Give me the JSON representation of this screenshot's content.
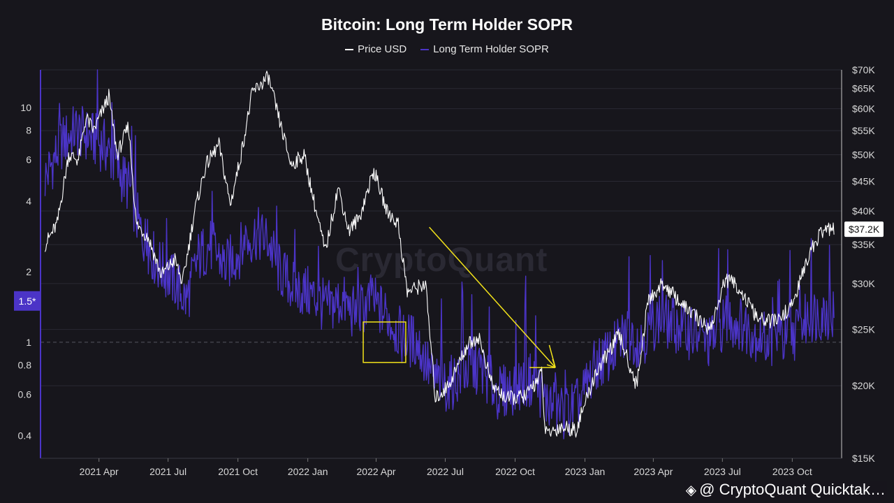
{
  "chart_data": {
    "type": "line",
    "title": "Bitcoin: Long Term Holder SOPR",
    "series": [
      {
        "name": "Price USD",
        "color": "#ffffff",
        "axis": "right",
        "points": [
          [
            "2021-01-20",
            35000
          ],
          [
            "2021-02-05",
            38000
          ],
          [
            "2021-02-20",
            50000
          ],
          [
            "2021-03-05",
            49000
          ],
          [
            "2021-03-15",
            58000
          ],
          [
            "2021-03-25",
            55000
          ],
          [
            "2021-04-14",
            63000
          ],
          [
            "2021-04-25",
            50000
          ],
          [
            "2021-05-10",
            56000
          ],
          [
            "2021-05-20",
            38000
          ],
          [
            "2021-06-05",
            36000
          ],
          [
            "2021-06-22",
            31000
          ],
          [
            "2021-07-10",
            33000
          ],
          [
            "2021-07-20",
            30000
          ],
          [
            "2021-08-05",
            40000
          ],
          [
            "2021-08-20",
            48000
          ],
          [
            "2021-09-06",
            52000
          ],
          [
            "2021-09-21",
            41000
          ],
          [
            "2021-10-05",
            50000
          ],
          [
            "2021-10-20",
            64000
          ],
          [
            "2021-11-10",
            68000
          ],
          [
            "2021-11-25",
            57000
          ],
          [
            "2021-12-10",
            48000
          ],
          [
            "2021-12-27",
            50000
          ],
          [
            "2022-01-10",
            41000
          ],
          [
            "2022-01-24",
            34000
          ],
          [
            "2022-02-10",
            44000
          ],
          [
            "2022-02-24",
            37000
          ],
          [
            "2022-03-10",
            39000
          ],
          [
            "2022-03-29",
            47000
          ],
          [
            "2022-04-15",
            40000
          ],
          [
            "2022-04-30",
            38000
          ],
          [
            "2022-05-12",
            29000
          ],
          [
            "2022-06-05",
            30000
          ],
          [
            "2022-06-18",
            19000
          ],
          [
            "2022-07-05",
            20000
          ],
          [
            "2022-07-30",
            23500
          ],
          [
            "2022-08-14",
            24300
          ],
          [
            "2022-09-01",
            20000
          ],
          [
            "2022-09-20",
            19000
          ],
          [
            "2022-10-15",
            19200
          ],
          [
            "2022-11-05",
            21000
          ],
          [
            "2022-11-10",
            16500
          ],
          [
            "2022-12-01",
            17000
          ],
          [
            "2022-12-20",
            16800
          ],
          [
            "2023-01-15",
            21000
          ],
          [
            "2023-02-15",
            24500
          ],
          [
            "2023-03-10",
            20000
          ],
          [
            "2023-03-25",
            28000
          ],
          [
            "2023-04-14",
            30000
          ],
          [
            "2023-05-10",
            27500
          ],
          [
            "2023-06-15",
            25000
          ],
          [
            "2023-07-05",
            30500
          ],
          [
            "2023-07-20",
            29800
          ],
          [
            "2023-08-17",
            26000
          ],
          [
            "2023-09-10",
            25800
          ],
          [
            "2023-10-01",
            27500
          ],
          [
            "2023-10-24",
            34000
          ],
          [
            "2023-11-10",
            37000
          ],
          [
            "2023-11-25",
            37200
          ]
        ]
      },
      {
        "name": "Long Term Holder SOPR",
        "color": "#4b34c7",
        "axis": "left",
        "points": [
          [
            "2021-01-20",
            5.0
          ],
          [
            "2021-02-10",
            7.0
          ],
          [
            "2021-03-01",
            8.0
          ],
          [
            "2021-03-20",
            7.5
          ],
          [
            "2021-04-10",
            6.8
          ],
          [
            "2021-04-25",
            5.5
          ],
          [
            "2021-05-12",
            4.5
          ],
          [
            "2021-05-25",
            3.0
          ],
          [
            "2021-06-15",
            2.2
          ],
          [
            "2021-07-10",
            1.8
          ],
          [
            "2021-07-25",
            1.5
          ],
          [
            "2021-08-10",
            2.3
          ],
          [
            "2021-08-25",
            2.6
          ],
          [
            "2021-09-15",
            2.1
          ],
          [
            "2021-10-10",
            2.6
          ],
          [
            "2021-10-25",
            2.9
          ],
          [
            "2021-11-10",
            2.7
          ],
          [
            "2021-11-25",
            2.0
          ],
          [
            "2021-12-15",
            1.7
          ],
          [
            "2022-01-05",
            1.6
          ],
          [
            "2022-01-25",
            1.4
          ],
          [
            "2022-02-15",
            1.5
          ],
          [
            "2022-03-05",
            1.3
          ],
          [
            "2022-03-25",
            1.5
          ],
          [
            "2022-04-15",
            1.3
          ],
          [
            "2022-05-05",
            1.05
          ],
          [
            "2022-05-25",
            1.0
          ],
          [
            "2022-06-15",
            0.7
          ],
          [
            "2022-07-05",
            0.65
          ],
          [
            "2022-07-25",
            0.75
          ],
          [
            "2022-08-15",
            0.78
          ],
          [
            "2022-09-10",
            0.6
          ],
          [
            "2022-10-01",
            0.65
          ],
          [
            "2022-10-25",
            0.7
          ],
          [
            "2022-11-12",
            0.55
          ],
          [
            "2022-12-05",
            0.5
          ],
          [
            "2022-12-25",
            0.55
          ],
          [
            "2023-01-15",
            0.8
          ],
          [
            "2023-02-05",
            0.9
          ],
          [
            "2023-02-25",
            1.1
          ],
          [
            "2023-03-15",
            1.0
          ],
          [
            "2023-04-05",
            1.25
          ],
          [
            "2023-04-25",
            1.2
          ],
          [
            "2023-05-20",
            1.1
          ],
          [
            "2023-06-15",
            1.0
          ],
          [
            "2023-07-05",
            1.25
          ],
          [
            "2023-07-25",
            1.2
          ],
          [
            "2023-08-20",
            1.05
          ],
          [
            "2023-09-15",
            1.0
          ],
          [
            "2023-10-05",
            1.1
          ],
          [
            "2023-10-25",
            1.3
          ],
          [
            "2023-11-15",
            1.35
          ],
          [
            "2023-11-25",
            1.3
          ]
        ]
      }
    ],
    "y_left": {
      "scale": "log",
      "range": [
        0.32,
        14.5
      ],
      "ticks": [
        0.4,
        0.6,
        0.8,
        1,
        2,
        4,
        6,
        8,
        10
      ],
      "tick_labels": [
        "0.4",
        "0.6",
        "0.8",
        "1",
        "2",
        "4",
        "6",
        "8",
        "10"
      ],
      "reference_line": 1,
      "highlight_label": "1.5*",
      "highlight_value": 1.5
    },
    "y_right": {
      "scale": "log",
      "range": [
        15000,
        70000
      ],
      "ticks": [
        15000,
        20000,
        25000,
        30000,
        35000,
        40000,
        45000,
        50000,
        55000,
        60000,
        65000,
        70000
      ],
      "tick_labels": [
        "$15K",
        "$20K",
        "$25K",
        "$30K",
        "$35K",
        "$40K",
        "$45K",
        "$50K",
        "$55K",
        "$60K",
        "$65K",
        "$70K"
      ],
      "current_label": "$37.2K",
      "current_value": 37200
    },
    "x_axis": {
      "range": [
        "2021-01-14",
        "2023-12-05"
      ],
      "ticks": [
        "2021-04-01",
        "2021-07-01",
        "2021-10-01",
        "2022-01-01",
        "2022-04-01",
        "2022-07-01",
        "2022-10-01",
        "2023-01-01",
        "2023-04-01",
        "2023-07-01",
        "2023-10-01"
      ],
      "tick_labels": [
        "2021 Apr",
        "2021 Jul",
        "2021 Oct",
        "2022 Jan",
        "2022 Apr",
        "2022 Jul",
        "2022 Oct",
        "2023 Jan",
        "2023 Apr",
        "2023 Jul",
        "2023 Oct"
      ]
    },
    "grid": true,
    "legend_position": "top-center",
    "annotations": [
      {
        "type": "rectangle",
        "color": "#f2e21a",
        "x": [
          "2022-03-15",
          "2022-05-10"
        ],
        "y_left": [
          0.82,
          1.22
        ]
      },
      {
        "type": "arrow",
        "color": "#f2e21a",
        "from": [
          "2022-06-10",
          37500
        ],
        "to": [
          "2022-11-23",
          21500
        ]
      },
      {
        "type": "arrow",
        "color": "#f2e21a",
        "from": [
          "2022-10-20",
          21500
        ],
        "to": [
          "2022-11-23",
          21500
        ]
      },
      {
        "type": "arrow",
        "color": "#f2e21a",
        "from": [
          "2022-11-15",
          23500
        ],
        "to": [
          "2022-11-23",
          21500
        ]
      }
    ]
  },
  "watermark": "CryptoQuant",
  "footer": "@ CryptoQuant Quicktak…",
  "colors": {
    "background": "#17161c",
    "grid": "#2a2933",
    "price": "#ffffff",
    "sopr": "#4b34c7",
    "annotation": "#f2e21a"
  }
}
